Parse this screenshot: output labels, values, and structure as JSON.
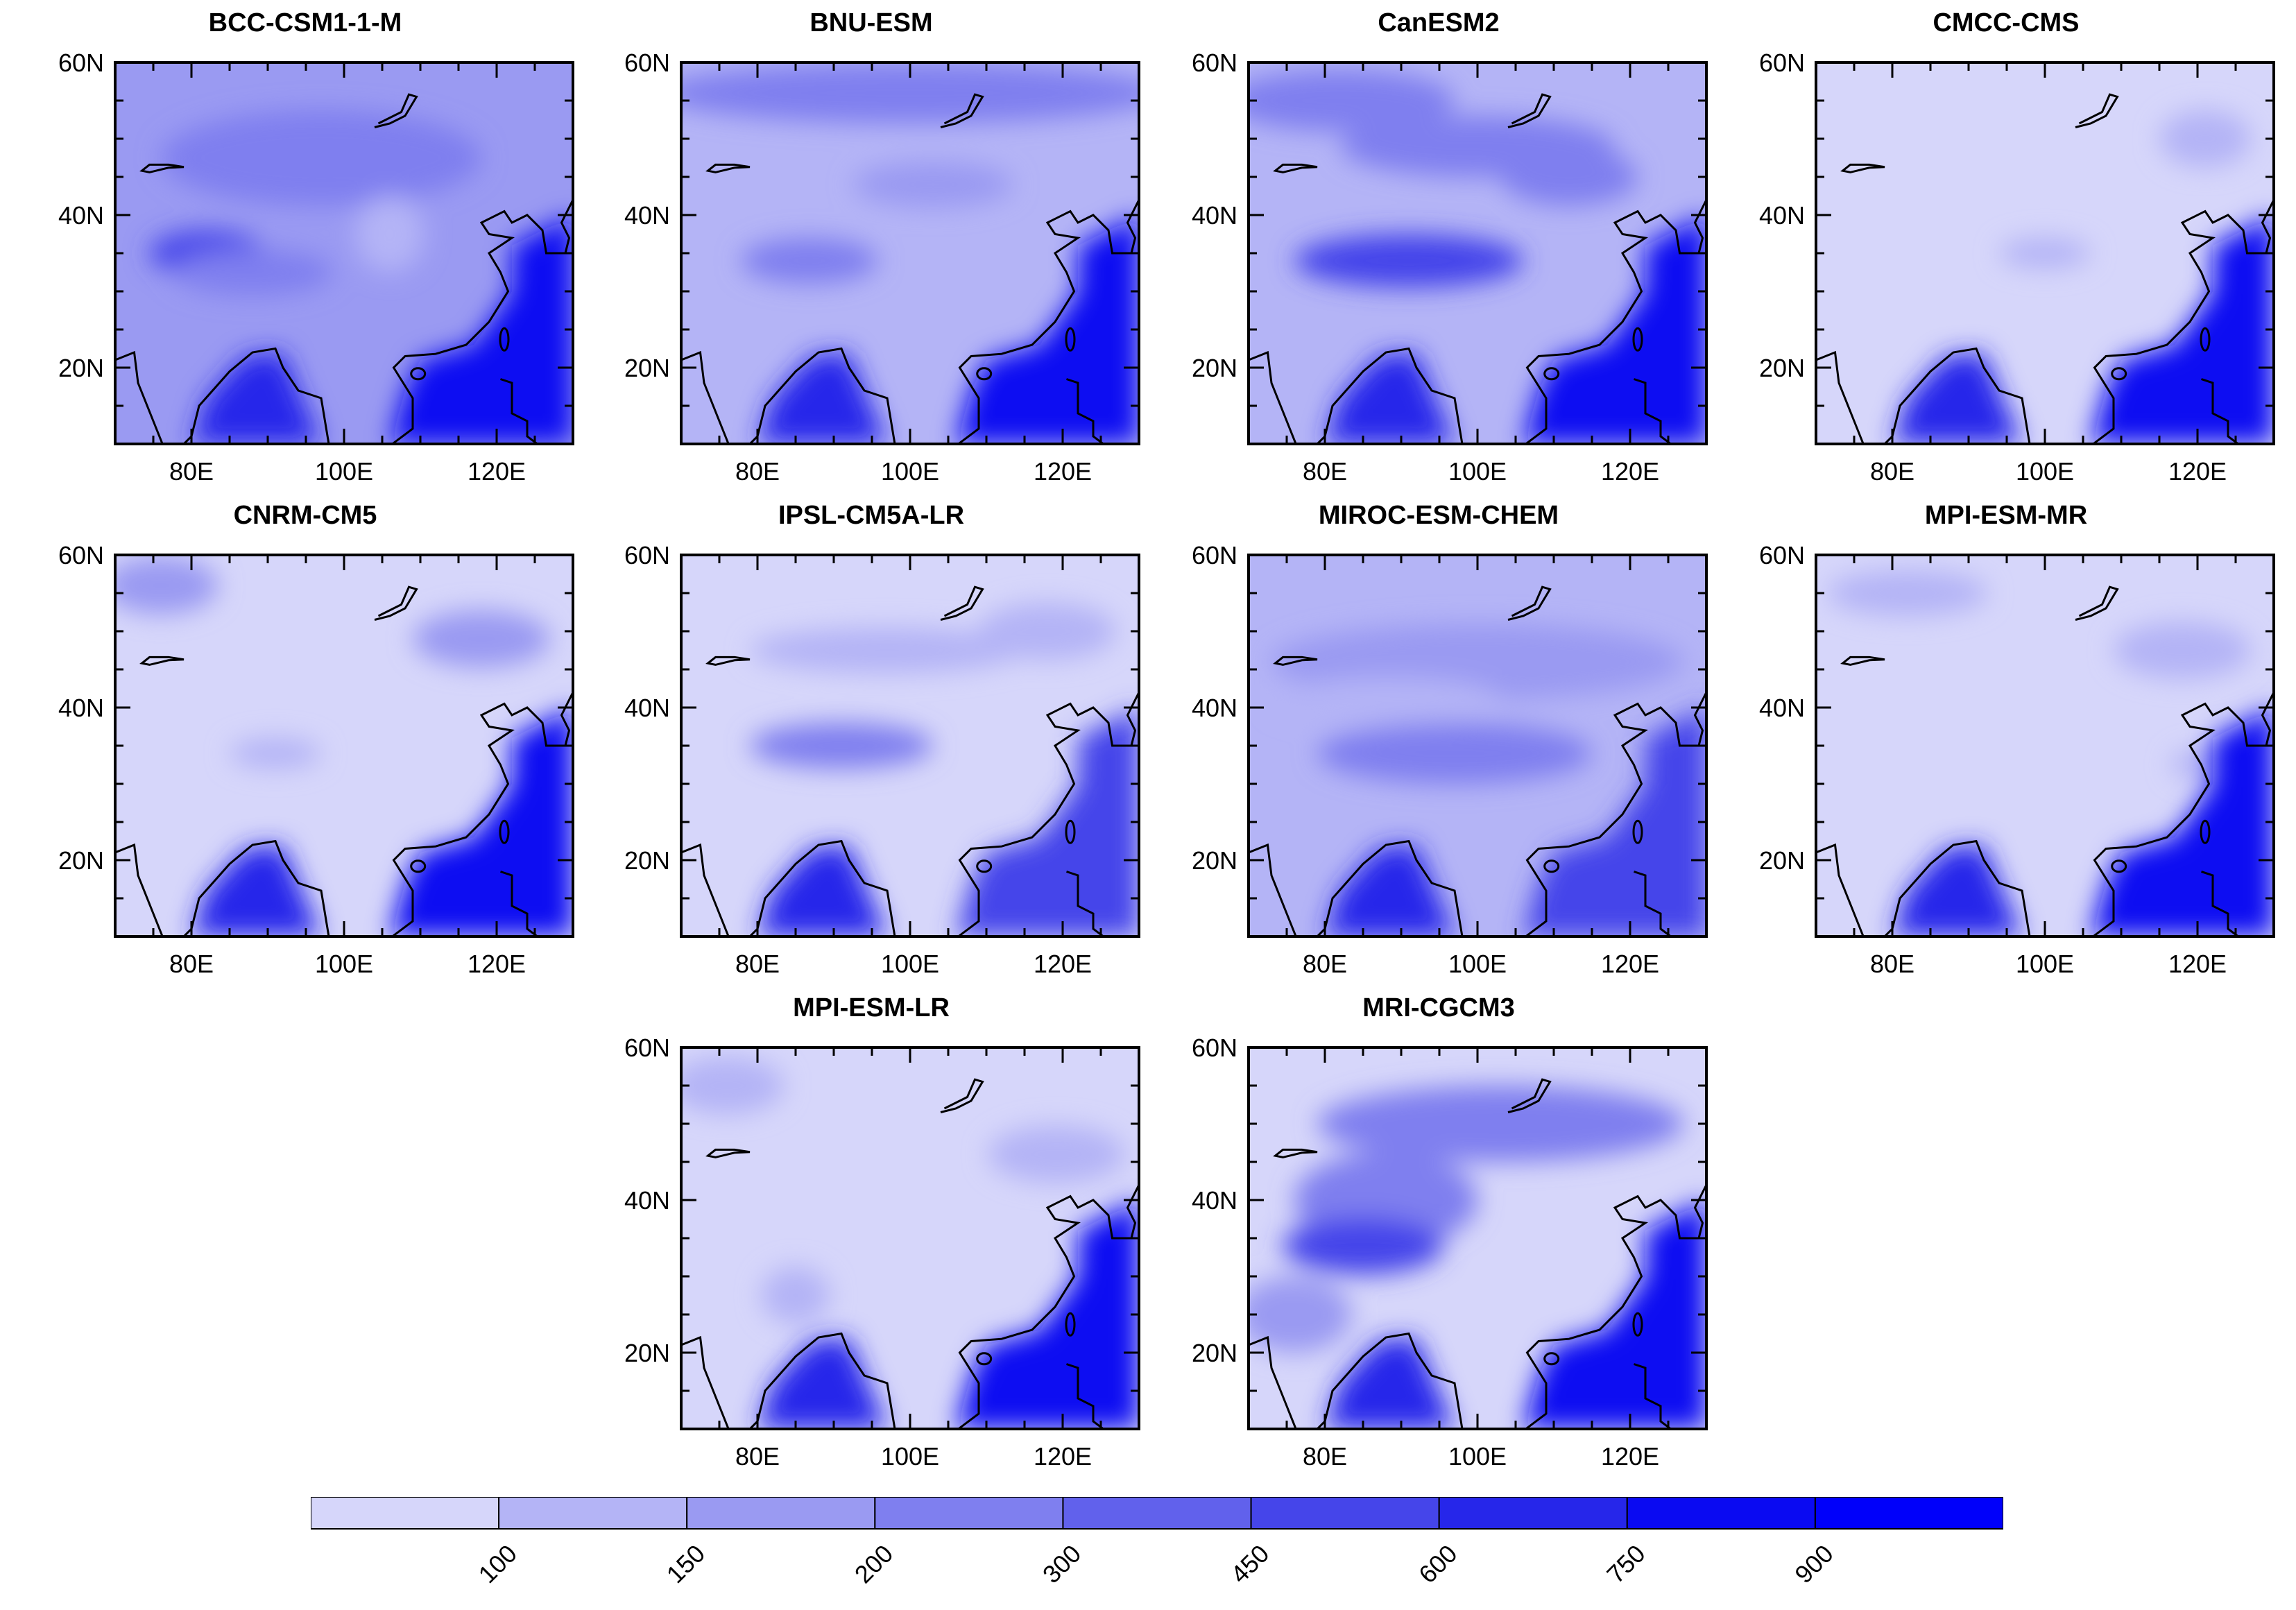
{
  "figure": {
    "description_units": "",
    "colors": {
      "land_outline": "#000000",
      "background": "#ffffff"
    }
  },
  "panels": [
    {
      "title": "BCC-CSM1-1-M",
      "lat_labels": [
        "60N",
        "40N",
        "20N"
      ],
      "lon_labels": [
        "80E",
        "100E",
        "120E"
      ]
    },
    {
      "title": "BNU-ESM",
      "lat_labels": [
        "60N",
        "40N",
        "20N"
      ],
      "lon_labels": [
        "80E",
        "100E",
        "120E"
      ]
    },
    {
      "title": "CanESM2",
      "lat_labels": [
        "60N",
        "40N",
        "20N"
      ],
      "lon_labels": [
        "80E",
        "100E",
        "120E"
      ]
    },
    {
      "title": "CMCC-CMS",
      "lat_labels": [
        "60N",
        "40N",
        "20N"
      ],
      "lon_labels": [
        "80E",
        "100E",
        "120E"
      ]
    },
    {
      "title": "CNRM-CM5",
      "lat_labels": [
        "60N",
        "40N",
        "20N"
      ],
      "lon_labels": [
        "80E",
        "100E",
        "120E"
      ]
    },
    {
      "title": "IPSL-CM5A-LR",
      "lat_labels": [
        "60N",
        "40N",
        "20N"
      ],
      "lon_labels": [
        "80E",
        "100E",
        "120E"
      ]
    },
    {
      "title": "MIROC-ESM-CHEM",
      "lat_labels": [
        "60N",
        "40N",
        "20N"
      ],
      "lon_labels": [
        "80E",
        "100E",
        "120E"
      ]
    },
    {
      "title": "MPI-ESM-MR",
      "lat_labels": [
        "60N",
        "40N",
        "20N"
      ],
      "lon_labels": [
        "80E",
        "100E",
        "120E"
      ]
    },
    {
      "title": "MPI-ESM-LR",
      "lat_labels": [
        "60N",
        "40N",
        "20N"
      ],
      "lon_labels": [
        "80E",
        "100E",
        "120E"
      ]
    },
    {
      "title": "MRI-CGCM3",
      "lat_labels": [
        "60N",
        "40N",
        "20N"
      ],
      "lon_labels": [
        "80E",
        "100E",
        "120E"
      ]
    }
  ],
  "colorbar": {
    "labels": [
      "100",
      "150",
      "200",
      "300",
      "450",
      "600",
      "750",
      "900"
    ],
    "colors": [
      "#d6d6fa",
      "#b4b4f6",
      "#9a9af2",
      "#7f7fef",
      "#6161ec",
      "#4545ea",
      "#2626ea",
      "#0a0af2",
      "#0000fa"
    ]
  }
}
